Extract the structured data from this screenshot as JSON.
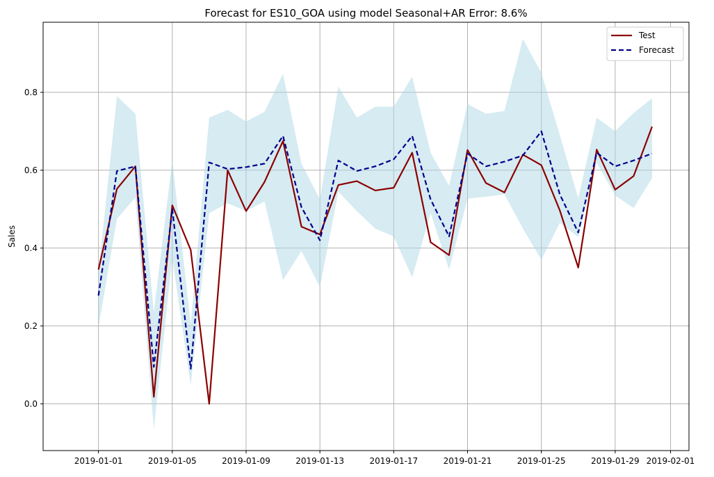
{
  "colors": {
    "test_line": "#8b0000",
    "forecast_line": "#00008b",
    "interval_fill": "#add8e6",
    "grid": "#b0b0b0",
    "frame": "#000000"
  },
  "chart_data": {
    "type": "line",
    "title": "Forecast for ES10_GOA using model Seasonal+AR Error: 8.6%",
    "xlabel": "",
    "ylabel": "Sales",
    "grid": true,
    "legend_position": "top-right",
    "xlim": [
      "2018-12-29",
      "2019-02-02"
    ],
    "ylim": [
      -0.12,
      0.98
    ],
    "x_ticks": [
      "2019-01-01",
      "2019-01-05",
      "2019-01-09",
      "2019-01-13",
      "2019-01-17",
      "2019-01-21",
      "2019-01-25",
      "2019-01-29",
      "2019-02-01"
    ],
    "y_ticks": [
      "0.0",
      "0.2",
      "0.4",
      "0.6",
      "0.8"
    ],
    "x": [
      "2019-01-01",
      "2019-01-02",
      "2019-01-03",
      "2019-01-04",
      "2019-01-05",
      "2019-01-06",
      "2019-01-07",
      "2019-01-08",
      "2019-01-09",
      "2019-01-10",
      "2019-01-11",
      "2019-01-12",
      "2019-01-13",
      "2019-01-14",
      "2019-01-15",
      "2019-01-16",
      "2019-01-17",
      "2019-01-18",
      "2019-01-19",
      "2019-01-20",
      "2019-01-21",
      "2019-01-22",
      "2019-01-23",
      "2019-01-24",
      "2019-01-25",
      "2019-01-26",
      "2019-01-27",
      "2019-01-28",
      "2019-01-29",
      "2019-01-30",
      "2019-01-31"
    ],
    "series": [
      {
        "name": "Test",
        "style": "solid",
        "values": [
          0.345,
          0.552,
          0.61,
          0.018,
          0.51,
          0.395,
          0.0,
          0.6,
          0.495,
          0.57,
          0.675,
          0.455,
          0.435,
          0.562,
          0.572,
          0.548,
          0.555,
          0.645,
          0.415,
          0.382,
          0.652,
          0.567,
          0.543,
          0.64,
          0.613,
          0.497,
          0.35,
          0.653,
          0.55,
          0.585,
          0.712
        ]
      },
      {
        "name": "Forecast",
        "style": "dashed",
        "values": [
          0.278,
          0.598,
          0.61,
          0.095,
          0.5,
          0.09,
          0.62,
          0.603,
          0.608,
          0.617,
          0.688,
          0.505,
          0.42,
          0.625,
          0.598,
          0.61,
          0.628,
          0.688,
          0.525,
          0.43,
          0.643,
          0.61,
          0.622,
          0.638,
          0.7,
          0.538,
          0.44,
          0.645,
          0.61,
          0.625,
          0.643
        ]
      }
    ],
    "interval": {
      "upper": [
        0.335,
        0.79,
        0.745,
        0.235,
        0.625,
        0.205,
        0.735,
        0.755,
        0.725,
        0.75,
        0.847,
        0.617,
        0.525,
        0.815,
        0.735,
        0.763,
        0.763,
        0.84,
        0.645,
        0.56,
        0.77,
        0.745,
        0.752,
        0.937,
        0.85,
        0.69,
        0.528,
        0.735,
        0.7,
        0.747,
        0.785
      ],
      "lower": [
        0.197,
        0.475,
        0.53,
        -0.065,
        0.375,
        0.048,
        0.49,
        0.515,
        0.495,
        0.52,
        0.318,
        0.393,
        0.3,
        0.545,
        0.495,
        0.45,
        0.43,
        0.325,
        0.49,
        0.345,
        0.527,
        0.532,
        0.538,
        0.45,
        0.37,
        0.465,
        0.428,
        0.62,
        0.535,
        0.503,
        0.58
      ]
    }
  }
}
